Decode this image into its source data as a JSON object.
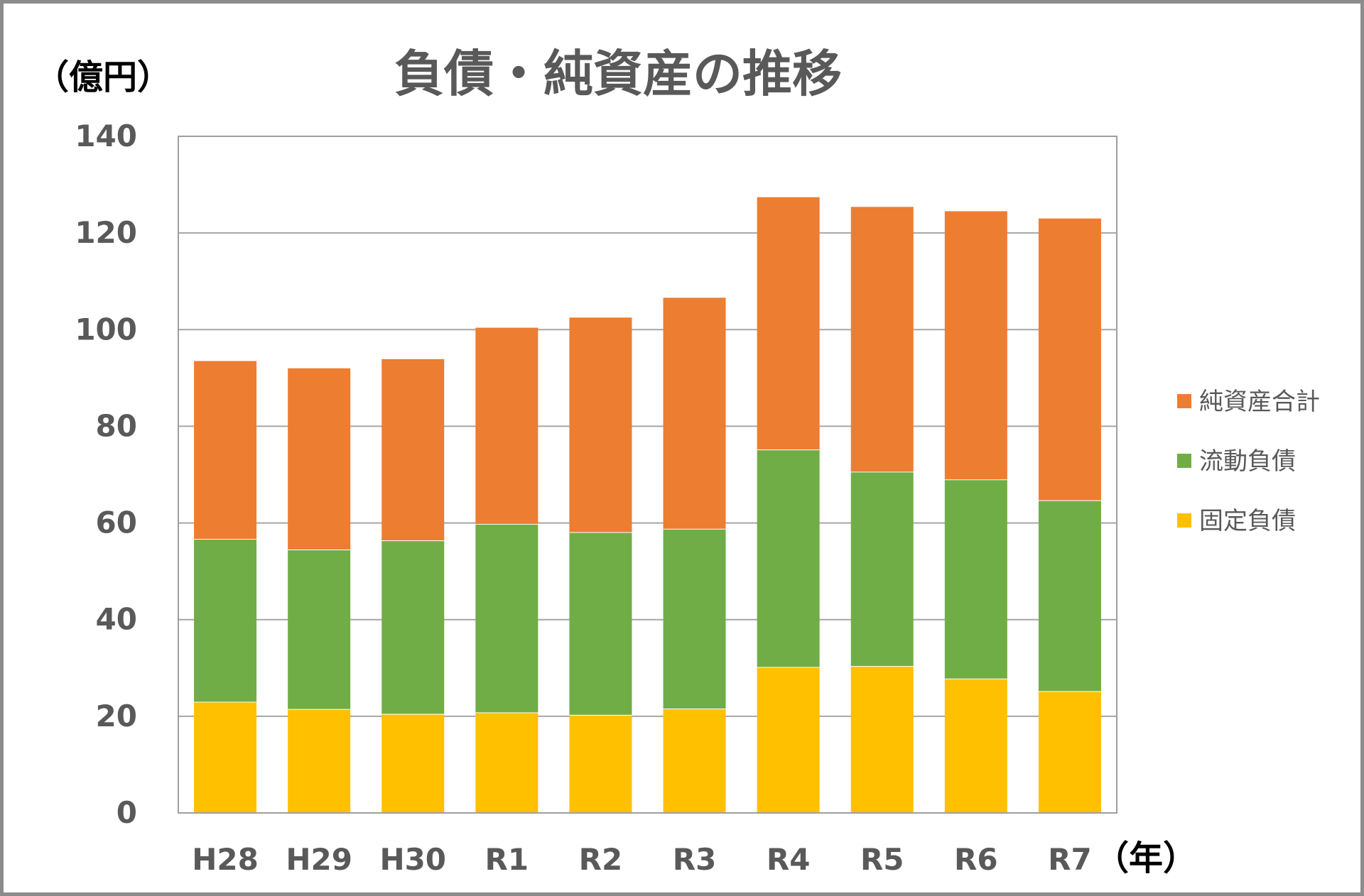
{
  "chart_data": {
    "type": "bar",
    "stacked": true,
    "title": "負債・純資産の推移",
    "ylabel": "（億円）",
    "xlabel": "（年）",
    "ylim": [
      0,
      140
    ],
    "yticks": [
      0,
      20,
      40,
      60,
      80,
      100,
      120,
      140
    ],
    "grid": true,
    "legend_position": "right",
    "categories": [
      "H28",
      "H29",
      "H30",
      "R1",
      "R2",
      "R3",
      "R4",
      "R5",
      "R6",
      "R7"
    ],
    "series": [
      {
        "name": "固定負債",
        "color": "#FFC000",
        "values": [
          23.0,
          21.5,
          20.5,
          20.8,
          20.3,
          21.6,
          30.2,
          30.4,
          27.8,
          25.2
        ]
      },
      {
        "name": "流動負債",
        "color": "#70AD47",
        "values": [
          33.7,
          33.0,
          35.9,
          39.0,
          37.8,
          37.2,
          45.0,
          40.2,
          41.2,
          39.5
        ]
      },
      {
        "name": "純資産合計",
        "color": "#ED7D31",
        "values": [
          36.8,
          37.5,
          37.5,
          40.6,
          44.4,
          47.8,
          52.2,
          54.8,
          55.5,
          58.3
        ]
      }
    ]
  }
}
